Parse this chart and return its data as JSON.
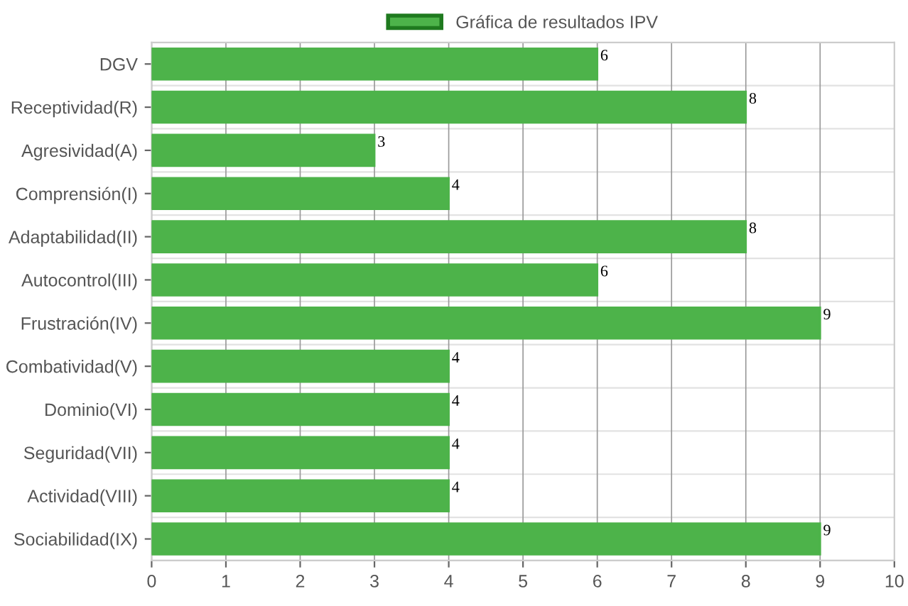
{
  "chart_data": {
    "type": "bar",
    "orientation": "horizontal",
    "categories": [
      "DGV",
      "Receptividad(R)",
      "Agresividad(A)",
      "Comprensión(I)",
      "Adaptabilidad(II)",
      "Autocontrol(III)",
      "Frustración(IV)",
      "Combatividad(V)",
      "Dominio(VI)",
      "Seguridad(VII)",
      "Actividad(VIII)",
      "Sociabilidad(IX)"
    ],
    "series": [
      {
        "name": "Gráfica de resultados IPV",
        "color": "#4db34a",
        "values": [
          6,
          8,
          3,
          4,
          8,
          6,
          9,
          4,
          4,
          4,
          4,
          9
        ]
      }
    ],
    "xlim": [
      0,
      10
    ],
    "xticks": [
      0,
      1,
      2,
      3,
      4,
      5,
      6,
      7,
      8,
      9,
      10
    ],
    "grid": true,
    "legend": "top",
    "data_labels": true
  }
}
